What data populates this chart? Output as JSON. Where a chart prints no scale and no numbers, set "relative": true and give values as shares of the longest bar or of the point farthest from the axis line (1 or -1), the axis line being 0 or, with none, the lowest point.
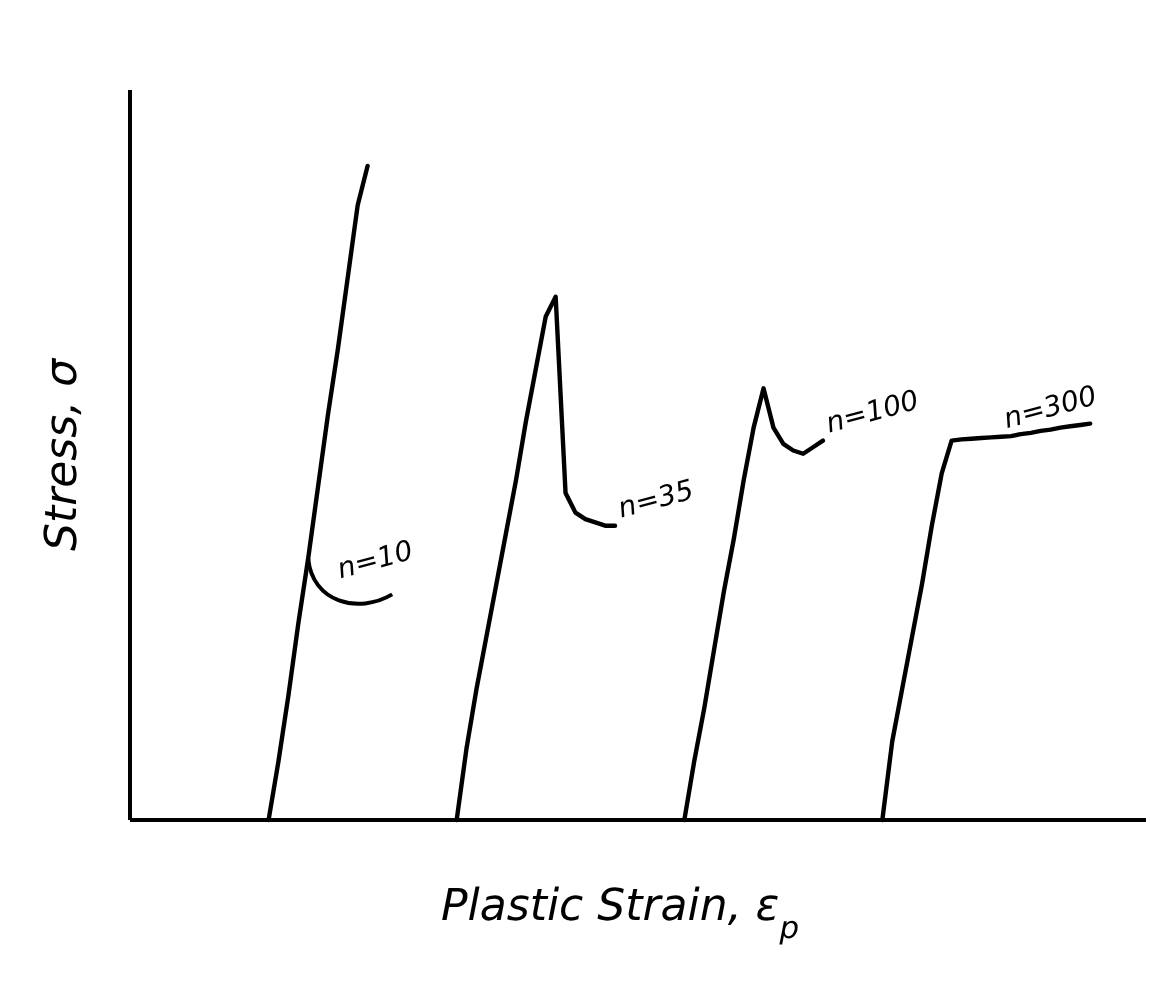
{
  "chart_data": {
    "type": "line",
    "relative": true,
    "xlabel": "Plastic Strain, ε$_{p}$",
    "ylabel": "Stress, σ",
    "marker": "none",
    "line_style": "solid",
    "categories": [
      null,
      null,
      null,
      null,
      null,
      null,
      null,
      null,
      null,
      null,
      null,
      null,
      null,
      null,
      null,
      null,
      null,
      null,
      null,
      null,
      null,
      null,
      null,
      null,
      null,
      null,
      null,
      null,
      null,
      null,
      null,
      null,
      null,
      null,
      null,
      null,
      null,
      null,
      null,
      null,
      null,
      null,
      null,
      null,
      null,
      null,
      null,
      null,
      null,
      null,
      null,
      null,
      null,
      null,
      null,
      null,
      null,
      null,
      null,
      null,
      null,
      null,
      null,
      null,
      null,
      null,
      null,
      null,
      null,
      null,
      null,
      null,
      null,
      null,
      null,
      null,
      null,
      null,
      null,
      null,
      null,
      null,
      null,
      null,
      null,
      null,
      null,
      null,
      null,
      null,
      null,
      null,
      null,
      null,
      null,
      null,
      null,
      null,
      null,
      null
    ],
    "series": [
      {
        "name": "n=10",
        "color": "#000000",
        "values": [
          null,
          null,
          null,
          null,
          null,
          null,
          null,
          null,
          null,
          null,
          null,
          null,
          null,
          null,
          0,
          0.09,
          0.19,
          0.3,
          0.4,
          0.51,
          0.62,
          0.72,
          0.83,
          0.94,
          1,
          null,
          null,
          null,
          null,
          null,
          null,
          null,
          null,
          null,
          null,
          null,
          null,
          null,
          null,
          null,
          null,
          null,
          null,
          null,
          null,
          null,
          null,
          null,
          null,
          null,
          null,
          null,
          null,
          null,
          null,
          null,
          null,
          null,
          null,
          null,
          null,
          null,
          null,
          null,
          null,
          null,
          null,
          null,
          null,
          null,
          null,
          null,
          null,
          null,
          null,
          null,
          null,
          null,
          null,
          null,
          null,
          null,
          null,
          null,
          null,
          null,
          null,
          null,
          null,
          null,
          null,
          null,
          null,
          null,
          null,
          null,
          null,
          null,
          null,
          null
        ]
      },
      {
        "name": "n=35",
        "color": "#000000",
        "values": [
          null,
          null,
          null,
          null,
          null,
          null,
          null,
          null,
          null,
          null,
          null,
          null,
          null,
          null,
          null,
          null,
          null,
          null,
          null,
          null,
          null,
          null,
          null,
          null,
          null,
          null,
          null,
          null,
          null,
          null,
          null,
          null,
          null,
          0,
          0.11,
          0.2,
          0.28,
          0.36,
          0.44,
          0.52,
          0.61,
          0.69,
          0.77,
          0.8,
          0.5,
          0.47,
          0.46,
          0.455,
          0.45,
          0.45,
          null,
          null,
          null,
          null,
          null,
          null,
          null,
          null,
          null,
          null,
          null,
          null,
          null,
          null,
          null,
          null,
          null,
          null,
          null,
          null,
          null,
          null,
          null,
          null,
          null,
          null,
          null,
          null,
          null,
          null,
          null,
          null,
          null,
          null,
          null,
          null,
          null,
          null,
          null,
          null,
          null,
          null,
          null,
          null,
          null,
          null,
          null,
          null,
          null,
          null
        ]
      },
      {
        "name": "n=100",
        "color": "#000000",
        "values": [
          null,
          null,
          null,
          null,
          null,
          null,
          null,
          null,
          null,
          null,
          null,
          null,
          null,
          null,
          null,
          null,
          null,
          null,
          null,
          null,
          null,
          null,
          null,
          null,
          null,
          null,
          null,
          null,
          null,
          null,
          null,
          null,
          null,
          null,
          null,
          null,
          null,
          null,
          null,
          null,
          null,
          null,
          null,
          null,
          null,
          null,
          null,
          null,
          null,
          null,
          null,
          null,
          null,
          null,
          null,
          null,
          0,
          0.09,
          0.17,
          0.26,
          0.35,
          0.43,
          0.52,
          0.6,
          0.66,
          0.6,
          0.575,
          0.565,
          0.56,
          0.57,
          0.58,
          null,
          null,
          null,
          null,
          null,
          null,
          null,
          null,
          null,
          null,
          null,
          null,
          null,
          null,
          null,
          null,
          null,
          null,
          null,
          null,
          null,
          null,
          null,
          null,
          null,
          null,
          null,
          null,
          null
        ]
      },
      {
        "name": "n=300",
        "color": "#000000",
        "values": [
          null,
          null,
          null,
          null,
          null,
          null,
          null,
          null,
          null,
          null,
          null,
          null,
          null,
          null,
          null,
          null,
          null,
          null,
          null,
          null,
          null,
          null,
          null,
          null,
          null,
          null,
          null,
          null,
          null,
          null,
          null,
          null,
          null,
          null,
          null,
          null,
          null,
          null,
          null,
          null,
          null,
          null,
          null,
          null,
          null,
          null,
          null,
          null,
          null,
          null,
          null,
          null,
          null,
          null,
          null,
          null,
          null,
          null,
          null,
          null,
          null,
          null,
          null,
          null,
          null,
          null,
          null,
          null,
          null,
          null,
          null,
          null,
          null,
          null,
          null,
          null,
          0,
          0.12,
          0.2,
          0.28,
          0.36,
          0.45,
          0.53,
          0.58,
          0.582,
          0.583,
          0.584,
          0.585,
          0.586,
          0.587,
          0.59,
          0.592,
          0.595,
          0.597,
          0.6,
          0.602,
          0.604,
          0.606,
          null,
          null
        ]
      }
    ]
  }
}
